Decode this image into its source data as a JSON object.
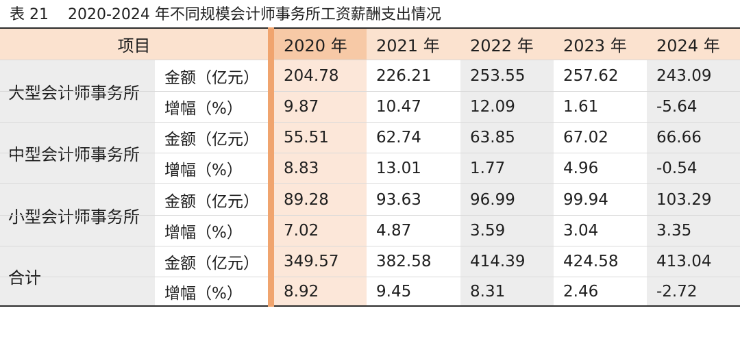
{
  "caption": {
    "number": "表 21",
    "title": "2020-2024 年不同规模会计师事务所工资薪酬支出情况"
  },
  "header": {
    "item": "项目",
    "years": [
      "2020 年",
      "2021 年",
      "2022 年",
      "2023 年",
      "2024 年"
    ]
  },
  "groups": [
    {
      "name": "大型会计师事务所",
      "rows": [
        {
          "metric": "金额（亿元）",
          "values": [
            "204.78",
            "226.21",
            "253.55",
            "257.62",
            "243.09"
          ]
        },
        {
          "metric": "增幅（%）",
          "values": [
            "9.87",
            "10.47",
            "12.09",
            "1.61",
            "-5.64"
          ]
        }
      ]
    },
    {
      "name": "中型会计师事务所",
      "rows": [
        {
          "metric": "金额（亿元）",
          "values": [
            "55.51",
            "62.74",
            "63.85",
            "67.02",
            "66.66"
          ]
        },
        {
          "metric": "增幅（%）",
          "values": [
            "8.83",
            "13.01",
            "1.77",
            "4.96",
            "-0.54"
          ]
        }
      ]
    },
    {
      "name": "小型会计师事务所",
      "rows": [
        {
          "metric": "金额（亿元）",
          "values": [
            "89.28",
            "93.63",
            "96.99",
            "99.94",
            "103.29"
          ]
        },
        {
          "metric": "增幅（%）",
          "values": [
            "7.02",
            "4.87",
            "3.59",
            "3.04",
            "3.35"
          ]
        }
      ]
    },
    {
      "name": "合计",
      "rows": [
        {
          "metric": "金额（亿元）",
          "values": [
            "349.57",
            "382.58",
            "414.39",
            "424.58",
            "413.04"
          ]
        },
        {
          "metric": "增幅（%）",
          "values": [
            "8.92",
            "9.45",
            "8.31",
            "2.46",
            "-2.72"
          ]
        }
      ]
    }
  ],
  "colors": {
    "header_bg": "#fbe2cf",
    "header_2020_bg": "#f7c9a6",
    "col_2020_bg": "#fce7d9",
    "accent_bar": "#f0a46e",
    "row_shade": "#ededed"
  }
}
